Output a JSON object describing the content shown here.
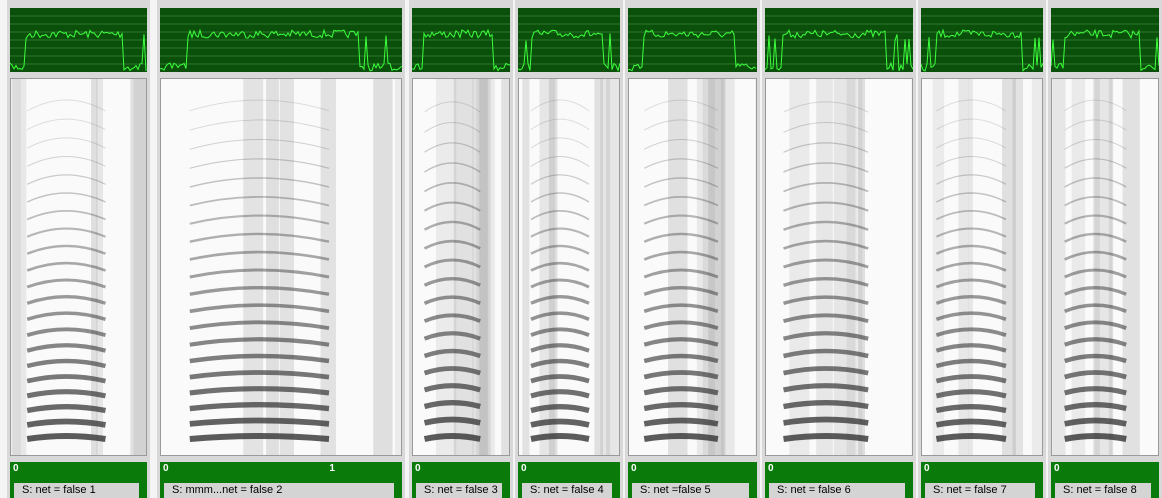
{
  "panels": [
    {
      "label": "S: net = false 1",
      "start": "0"
    },
    {
      "label": "S: mmm...net = false 2",
      "start": "0",
      "end": "1"
    },
    {
      "label": "S: net = false 3",
      "start": "0"
    },
    {
      "label": "S: net = false 4",
      "start": "0"
    },
    {
      "label": "S: net =false 5",
      "start": "0"
    },
    {
      "label": "S: net = false 6",
      "start": "0"
    },
    {
      "label": "S: net = false 7",
      "start": "0"
    },
    {
      "label": "S: net = false 8",
      "start": "0"
    }
  ]
}
